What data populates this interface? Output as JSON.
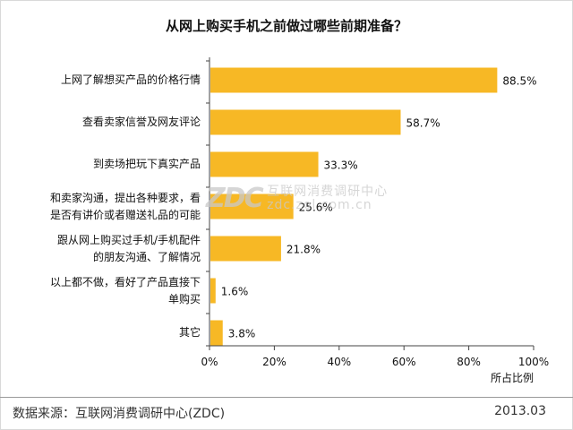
{
  "chart_data": {
    "type": "bar",
    "orientation": "horizontal",
    "title": "从网上购买手机之前做过哪些前期准备？",
    "categories": [
      [
        "上网了解想买产品的价格行情"
      ],
      [
        "查看卖家信誉及网友评论"
      ],
      [
        "到卖场把玩下真实产品"
      ],
      [
        "和卖家沟通，提出各种要求，看",
        "是否有讲价或者赠送礼品的可能"
      ],
      [
        "跟从网上购买过手机/手机配件",
        "的朋友沟通、了解情况"
      ],
      [
        "以上都不做，看好了产品直接下",
        "单购买"
      ],
      [
        "其它"
      ]
    ],
    "values": [
      88.5,
      58.7,
      33.3,
      25.6,
      21.8,
      1.6,
      3.8
    ],
    "data_labels": [
      "88.5%",
      "58.7%",
      "33.3%",
      "25.6%",
      "21.8%",
      "1.6%",
      "3.8%"
    ],
    "xlim": [
      0,
      100
    ],
    "x_ticks": [
      "0%",
      "20%",
      "40%",
      "60%",
      "80%",
      "100%"
    ],
    "xlabel": "所占比例",
    "grid": false,
    "bar_color": "#f7b825"
  },
  "footer": {
    "source": "数据来源：互联网消费调研中心(ZDC)",
    "date": "2013.03"
  },
  "watermark": {
    "logo": "ZDC",
    "line1": "互联网消费调研中心",
    "line2": "zdc.zol.com.cn"
  }
}
